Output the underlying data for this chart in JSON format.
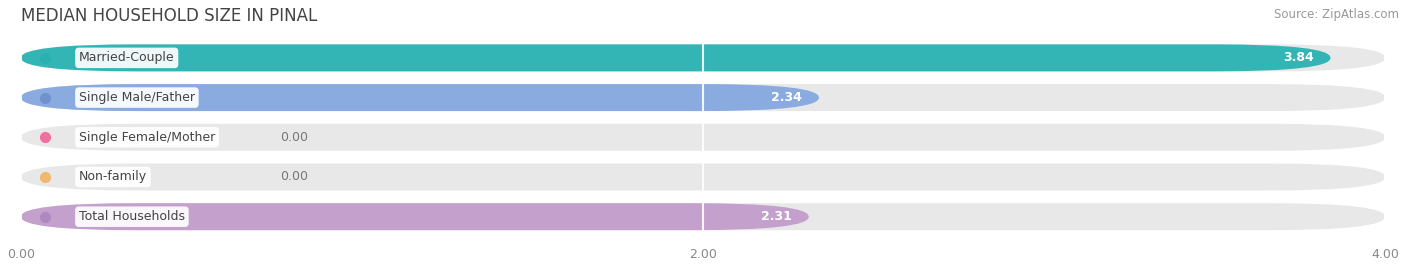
{
  "title": "MEDIAN HOUSEHOLD SIZE IN PINAL",
  "source": "Source: ZipAtlas.com",
  "categories": [
    "Married-Couple",
    "Single Male/Father",
    "Single Female/Mother",
    "Non-family",
    "Total Households"
  ],
  "values": [
    3.84,
    2.34,
    0.0,
    0.0,
    2.31
  ],
  "bar_colors": [
    "#33b5b5",
    "#8aabe0",
    "#f098a8",
    "#f5c98a",
    "#c4a0cc"
  ],
  "label_dot_colors": [
    "#2ab0b0",
    "#7090d0",
    "#f070a0",
    "#f0b870",
    "#b088c0"
  ],
  "background_color": "#f5f5f5",
  "bar_bg_color": "#e8e8e8",
  "xlim": [
    0,
    4.0
  ],
  "xticks": [
    0.0,
    2.0,
    4.0
  ],
  "xtick_labels": [
    "0.00",
    "2.00",
    "4.00"
  ],
  "title_fontsize": 12,
  "label_fontsize": 9,
  "value_fontsize": 9,
  "source_fontsize": 8.5,
  "bar_height": 0.68,
  "bar_gap": 1.0
}
